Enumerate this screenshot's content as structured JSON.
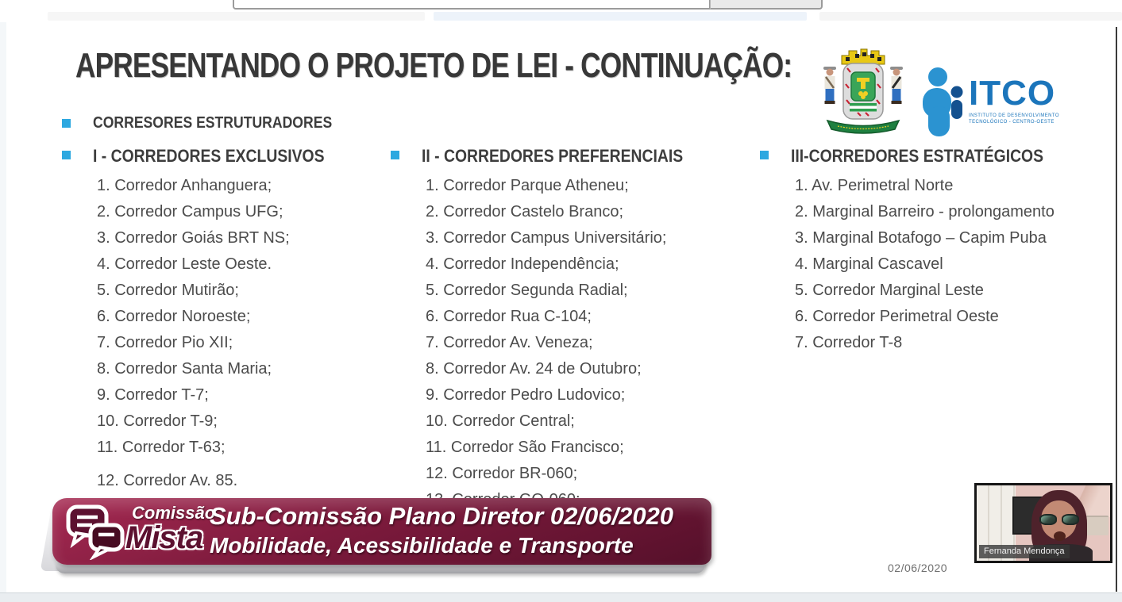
{
  "slide": {
    "title": "APRESENTANDO O PROJETO DE LEI - CONTINUAÇÃO:",
    "intro_bullet": "CORRESORES ESTRUTURADORES",
    "columns": [
      {
        "header": "I - CORREDORES EXCLUSIVOS",
        "items": [
          "1. Corredor Anhanguera;",
          "2. Corredor Campus UFG;",
          "3. Corredor Goiás BRT NS;",
          "4. Corredor Leste Oeste.",
          "5. Corredor Mutirão;",
          "6. Corredor Noroeste;",
          "7. Corredor Pio XII;",
          "8. Corredor Santa Maria;",
          "9. Corredor T-7;",
          "10. Corredor T-9;",
          "11. Corredor T-63;",
          "12. Corredor Av. 85."
        ]
      },
      {
        "header": "II - CORREDORES PREFERENCIAIS",
        "items": [
          "1. Corredor Parque Atheneu;",
          "2. Corredor Castelo Branco;",
          "3. Corredor Campus Universitário;",
          "4. Corredor Independência;",
          "5. Corredor Segunda Radial;",
          "6. Corredor Rua C-104;",
          "7. Corredor Av. Veneza;",
          "8. Corredor Av. 24 de Outubro;",
          "9. Corredor Pedro Ludovico;",
          "10. Corredor Central;",
          "11. Corredor São Francisco;",
          "12. Corredor BR-060;",
          "13. Corredor GO-060;"
        ]
      },
      {
        "header": "III-CORREDORES ESTRATÉGICOS",
        "items": [
          "1. Av. Perimetral Norte",
          "2. Marginal Barreiro - prolongamento",
          "3. Marginal Botafogo – Capim Puba",
          "4. Marginal Cascavel",
          "5. Corredor Marginal Leste",
          "6. Corredor Perimetral Oeste",
          "7. Corredor T-8"
        ]
      }
    ],
    "itco": {
      "wordmark": "ITCO",
      "caption": "INSTITUTO DE DESENVOLVIMENTO TECNOLÓGICO - CENTRO-OESTE"
    },
    "banner": {
      "logo_top": "Comissão",
      "logo_bottom": "Mista",
      "title_line1": "Sub-Comissão Plano Diretor 02/06/2020",
      "title_line2": "Mobilidade, Acessibilidade e Transporte"
    },
    "date_label": "02/06/2020"
  },
  "webcam": {
    "name_label": "Fernanda Mendonça"
  },
  "colors": {
    "bullet_blue": "#2da8e0",
    "banner_maroon": "#6b1533",
    "itco_blue": "#1b75bb",
    "text_dark": "#3d3d3d"
  }
}
